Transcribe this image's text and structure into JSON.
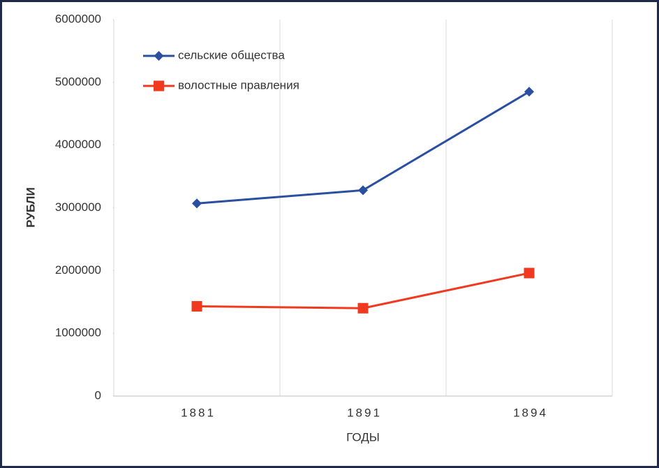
{
  "chart_data": {
    "type": "line",
    "categories": [
      "1881",
      "1891",
      "1894"
    ],
    "series": [
      {
        "name": "сельские общества",
        "color": "#2a4fa0",
        "marker": "diamond",
        "values": [
          3070000,
          3280000,
          4850000
        ]
      },
      {
        "name": "волостные правления",
        "color": "#f03a20",
        "marker": "square",
        "values": [
          1430000,
          1400000,
          1960000
        ]
      }
    ],
    "ylim": [
      0,
      6000000
    ],
    "yticks": [
      0,
      1000000,
      2000000,
      3000000,
      4000000,
      5000000,
      6000000
    ],
    "xlabel": "ГОДЫ",
    "ylabel": "РУБЛИ",
    "legend": "upper left",
    "grid": true
  }
}
